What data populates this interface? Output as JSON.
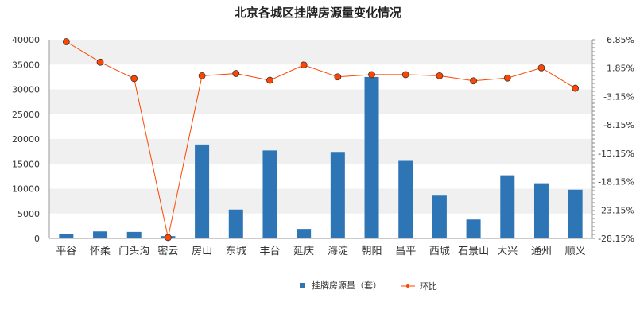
{
  "chart_data": {
    "type": "bar",
    "title": "北京各城区挂牌房源量变化情况",
    "categories": [
      "平谷",
      "怀柔",
      "门头沟",
      "密云",
      "房山",
      "东城",
      "丰台",
      "延庆",
      "海淀",
      "朝阳",
      "昌平",
      "西城",
      "石景山",
      "大兴",
      "通州",
      "顺义"
    ],
    "series": [
      {
        "name": "挂牌房源量（套）",
        "type": "bar",
        "axis": "left",
        "color": "#2e75b6",
        "values": [
          800,
          1400,
          1300,
          450,
          18900,
          5800,
          17700,
          1900,
          17400,
          32500,
          15600,
          8600,
          3800,
          12700,
          11100,
          9800
        ]
      },
      {
        "name": "环比",
        "type": "line",
        "axis": "right",
        "color": "#ff4500",
        "marker_color": "#ff4500",
        "values": [
          6.5,
          2.9,
          0.0,
          -28.0,
          0.5,
          0.9,
          -0.3,
          2.4,
          0.3,
          0.7,
          0.7,
          0.5,
          -0.4,
          0.1,
          1.9,
          -1.7
        ]
      }
    ],
    "y_left": {
      "min": 0,
      "max": 40000,
      "ticks": [
        "0",
        "5000",
        "10000",
        "15000",
        "20000",
        "25000",
        "30000",
        "35000",
        "40000"
      ]
    },
    "y_right": {
      "min": -28.15,
      "max": 6.85,
      "ticks": [
        "6.85%",
        "1.85%",
        "-3.15%",
        "-8.15%",
        "-13.15%",
        "-18.15%",
        "-23.15%",
        "-28.15%"
      ]
    },
    "grid": "horizontal bands",
    "band_color": "#f0f0f0",
    "legend_position": "bottom"
  }
}
